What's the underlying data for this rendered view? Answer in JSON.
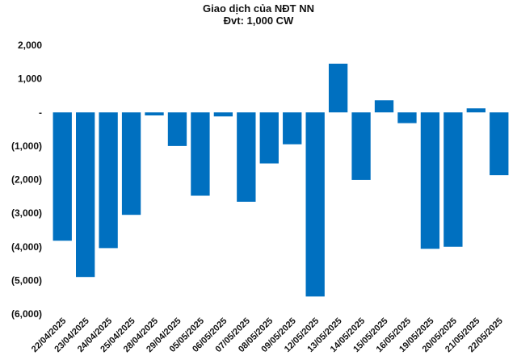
{
  "chart_data": {
    "type": "bar",
    "title": "Giao dịch của NĐT NN",
    "subtitle": "Đvt: 1,000 CW",
    "xlabel": "",
    "ylabel": "",
    "ylim": [
      -6000,
      2000
    ],
    "yticks": [
      2000,
      1000,
      0,
      -1000,
      -2000,
      -3000,
      -4000,
      -5000,
      -6000
    ],
    "ytick_labels": [
      "2,000",
      "1,000",
      "-",
      "(1,000)",
      "(2,000)",
      "(3,000)",
      "(4,000)",
      "(5,000)",
      "(6,000)"
    ],
    "grid": false,
    "bar_color": "#0070C0",
    "categories": [
      "22/04/2025",
      "23/04/2025",
      "24/04/2025",
      "25/04/2025",
      "28/04/2025",
      "29/04/2025",
      "05/05/2025",
      "06/05/2025",
      "07/05/2025",
      "08/05/2025",
      "09/05/2025",
      "12/05/2025",
      "13/05/2025",
      "14/05/2025",
      "15/05/2025",
      "16/05/2025",
      "19/05/2025",
      "20/05/2025",
      "21/05/2025",
      "22/05/2025"
    ],
    "values": [
      -3820,
      -4900,
      -4040,
      -3050,
      -90,
      -1000,
      -2480,
      -120,
      -2660,
      -1520,
      -950,
      -5480,
      1450,
      -2010,
      360,
      -320,
      -4060,
      -4000,
      120,
      -1870
    ]
  }
}
